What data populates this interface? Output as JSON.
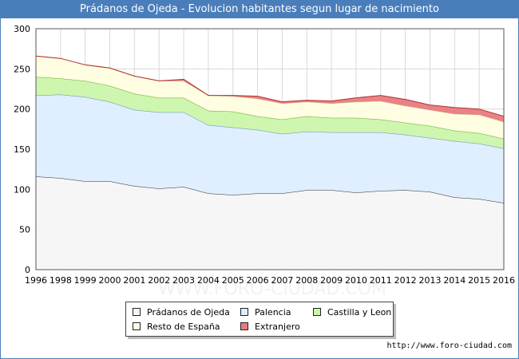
{
  "title": "Prádanos de Ojeda - Evolucion habitantes segun lugar de nacimiento",
  "source": "http://www.foro-ciudad.com",
  "watermark": "WWW.FORO-CIUDAD.COM",
  "chart_data": {
    "type": "area",
    "stacked": true,
    "x": [
      "1996",
      "1998",
      "1999",
      "2000",
      "2001",
      "2002",
      "2003",
      "2004",
      "2005",
      "2006",
      "2007",
      "2008",
      "2009",
      "2010",
      "2011",
      "2012",
      "2013",
      "2014",
      "2015",
      "2016"
    ],
    "ylim": [
      0,
      300
    ],
    "yticks": [
      0,
      50,
      100,
      150,
      200,
      250,
      300
    ],
    "grid": true,
    "legend_position": "bottom",
    "series": [
      {
        "name": "Prádanos de Ojeda",
        "color": "#f5f5f5",
        "line": "#333333",
        "values": [
          116,
          114,
          110,
          110,
          104,
          101,
          103,
          95,
          93,
          95,
          95,
          99,
          99,
          96,
          98,
          99,
          97,
          90,
          88,
          83
        ]
      },
      {
        "name": "Palencia",
        "color": "#ddeeff",
        "line": "#6a8fc0",
        "values": [
          101,
          104,
          105,
          99,
          95,
          95,
          93,
          85,
          84,
          79,
          74,
          73,
          72,
          75,
          73,
          69,
          67,
          70,
          69,
          68
        ]
      },
      {
        "name": "Castilla y Leon",
        "color": "#ccf5aa",
        "line": "#66aa33",
        "values": [
          23,
          20,
          20,
          20,
          20,
          18,
          18,
          18,
          20,
          17,
          18,
          19,
          18,
          18,
          16,
          15,
          15,
          13,
          13,
          12
        ]
      },
      {
        "name": "Resto de España",
        "color": "#fffde0",
        "line": "#c8c090",
        "values": [
          26,
          25,
          20,
          22,
          22,
          21,
          21,
          19,
          19,
          22,
          20,
          18,
          18,
          20,
          23,
          21,
          20,
          21,
          23,
          21
        ]
      },
      {
        "name": "Extranjero",
        "color": "#e87b7f",
        "line": "#b03030",
        "values": [
          0,
          0,
          0,
          0,
          0,
          0,
          2,
          0,
          1,
          3,
          2,
          2,
          3,
          5,
          7,
          8,
          6,
          8,
          7,
          7
        ]
      }
    ]
  }
}
